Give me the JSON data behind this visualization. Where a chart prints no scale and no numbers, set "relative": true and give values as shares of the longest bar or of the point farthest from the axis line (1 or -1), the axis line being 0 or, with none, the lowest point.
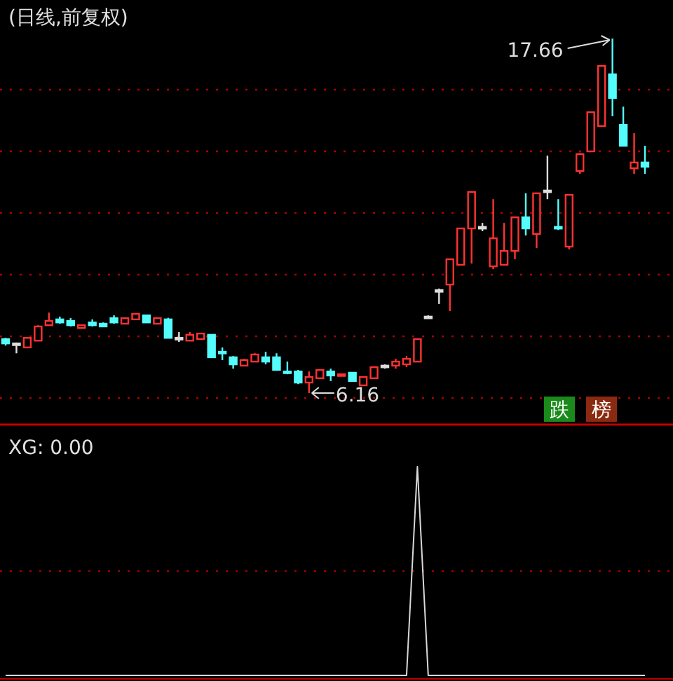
{
  "chart_data": [
    {
      "type": "candlestick",
      "title": "(日线,前复权)",
      "categories": [
        null,
        null,
        null,
        null,
        null,
        null,
        null,
        null,
        null,
        null,
        null,
        null,
        null,
        null,
        null,
        null,
        null,
        null,
        null,
        null,
        null,
        null,
        null,
        null,
        null,
        null,
        null,
        null,
        null,
        null,
        null,
        null,
        null,
        null,
        null,
        null,
        null,
        null,
        null,
        null,
        null,
        null,
        null,
        null,
        null,
        null,
        null,
        null,
        null,
        null,
        null,
        null,
        null,
        null,
        null,
        null,
        null,
        null,
        null,
        null
      ],
      "ohlc": [
        [
          7.91,
          7.95,
          7.7,
          7.77
        ],
        [
          7.77,
          7.8,
          7.45,
          7.77
        ],
        [
          7.64,
          7.98,
          7.62,
          7.95
        ],
        [
          7.86,
          8.36,
          7.84,
          8.32
        ],
        [
          8.36,
          8.77,
          8.36,
          8.5
        ],
        [
          8.55,
          8.64,
          8.41,
          8.45
        ],
        [
          8.5,
          8.59,
          8.32,
          8.36
        ],
        [
          8.27,
          8.36,
          8.27,
          8.36
        ],
        [
          8.45,
          8.55,
          8.32,
          8.36
        ],
        [
          8.41,
          8.45,
          8.32,
          8.32
        ],
        [
          8.59,
          8.68,
          8.41,
          8.45
        ],
        [
          8.41,
          8.59,
          8.41,
          8.59
        ],
        [
          8.55,
          8.73,
          8.55,
          8.73
        ],
        [
          8.68,
          8.68,
          8.45,
          8.45
        ],
        [
          8.41,
          8.59,
          8.41,
          8.59
        ],
        [
          8.55,
          8.6,
          7.95,
          7.95
        ],
        [
          7.95,
          8.14,
          7.82,
          7.95
        ],
        [
          7.86,
          8.14,
          7.86,
          8.05
        ],
        [
          7.91,
          8.09,
          7.91,
          8.09
        ],
        [
          8.05,
          8.05,
          7.32,
          7.32
        ],
        [
          7.5,
          7.64,
          7.23,
          7.45
        ],
        [
          7.32,
          7.36,
          6.95,
          7.09
        ],
        [
          7.05,
          7.27,
          7.05,
          7.23
        ],
        [
          7.18,
          7.45,
          7.18,
          7.41
        ],
        [
          7.32,
          7.5,
          7.09,
          7.18
        ],
        [
          7.32,
          7.45,
          6.91,
          6.91
        ],
        [
          6.86,
          7.18,
          6.77,
          6.82
        ],
        [
          6.86,
          6.91,
          6.45,
          6.5
        ],
        [
          6.5,
          6.86,
          6.16,
          6.68
        ],
        [
          6.64,
          6.91,
          6.64,
          6.91
        ],
        [
          6.86,
          6.95,
          6.55,
          6.73
        ],
        [
          6.73,
          6.77,
          6.73,
          6.77
        ],
        [
          6.82,
          6.82,
          6.55,
          6.55
        ],
        [
          6.41,
          6.68,
          6.41,
          6.68
        ],
        [
          6.64,
          7.0,
          6.64,
          7.0
        ],
        [
          7.05,
          7.09,
          6.95,
          7.05
        ],
        [
          7.05,
          7.27,
          6.95,
          7.18
        ],
        [
          7.09,
          7.36,
          7.0,
          7.27
        ],
        [
          7.18,
          7.91,
          7.18,
          7.91
        ],
        [
          8.64,
          8.68,
          8.64,
          8.64
        ],
        [
          9.5,
          9.55,
          9.05,
          9.5
        ],
        [
          9.68,
          10.5,
          8.82,
          10.5
        ],
        [
          10.32,
          11.5,
          10.32,
          11.5
        ],
        [
          11.5,
          12.68,
          10.36,
          12.68
        ],
        [
          11.55,
          11.68,
          11.41,
          11.55
        ],
        [
          10.27,
          12.45,
          10.18,
          11.18
        ],
        [
          10.32,
          11.68,
          10.32,
          10.77
        ],
        [
          10.77,
          11.86,
          10.5,
          11.86
        ],
        [
          11.86,
          12.64,
          11.27,
          11.5
        ],
        [
          11.32,
          12.64,
          10.86,
          12.64
        ],
        [
          12.73,
          13.86,
          12.45,
          12.73
        ],
        [
          11.55,
          12.45,
          11.45,
          11.5
        ],
        [
          10.91,
          12.59,
          10.82,
          12.59
        ],
        [
          13.36,
          13.95,
          13.27,
          13.91
        ],
        [
          14.0,
          15.27,
          14.0,
          15.27
        ],
        [
          14.82,
          16.77,
          14.82,
          16.77
        ],
        [
          16.5,
          17.66,
          15.14,
          15.73
        ],
        [
          14.86,
          15.45,
          14.18,
          14.18
        ],
        [
          13.45,
          14.59,
          13.27,
          13.64
        ],
        [
          13.64,
          14.18,
          13.27,
          13.5
        ]
      ],
      "colors": [
        "#54fcfc",
        "#dddddd",
        "#ff3232",
        "#ff3232",
        "#ff3232",
        "#54fcfc",
        "#54fcfc",
        "#ff3232",
        "#54fcfc",
        "#54fcfc",
        "#54fcfc",
        "#ff3232",
        "#ff3232",
        "#54fcfc",
        "#ff3232",
        "#54fcfc",
        "#dddddd",
        "#ff3232",
        "#ff3232",
        "#54fcfc",
        "#54fcfc",
        "#54fcfc",
        "#ff3232",
        "#ff3232",
        "#54fcfc",
        "#54fcfc",
        "#54fcfc",
        "#54fcfc",
        "#ff3232",
        "#ff3232",
        "#54fcfc",
        "#ff3232",
        "#54fcfc",
        "#ff3232",
        "#ff3232",
        "#dddddd",
        "#ff3232",
        "#ff3232",
        "#ff3232",
        "#dddddd",
        "#dddddd",
        "#ff3232",
        "#ff3232",
        "#ff3232",
        "#dddddd",
        "#ff3232",
        "#ff3232",
        "#ff3232",
        "#54fcfc",
        "#ff3232",
        "#dddddd",
        "#54fcfc",
        "#ff3232",
        "#ff3232",
        "#ff3232",
        "#ff3232",
        "#54fcfc",
        "#54fcfc",
        "#ff3232",
        "#54fcfc"
      ],
      "yticks": [
        {
          "value": 6,
          "label": null
        },
        {
          "value": 8,
          "label": null
        },
        {
          "value": 10,
          "label": null
        },
        {
          "value": 12,
          "label": null
        },
        {
          "value": 14,
          "label": null
        },
        {
          "value": 16,
          "label": null
        }
      ],
      "grid": "y",
      "annotations": [
        "17.66",
        "6.16",
        "跌",
        "榜"
      ]
    },
    {
      "type": "line",
      "title": "XG: 0.00",
      "relative": true,
      "categories": [
        null,
        null,
        null,
        null,
        null,
        null,
        null,
        null,
        null,
        null,
        null,
        null,
        null,
        null,
        null,
        null,
        null,
        null,
        null,
        null,
        null,
        null,
        null,
        null,
        null,
        null,
        null,
        null,
        null,
        null,
        null,
        null,
        null,
        null,
        null,
        null,
        null,
        null,
        null,
        null,
        null,
        null,
        null,
        null,
        null,
        null,
        null,
        null,
        null,
        null,
        null,
        null,
        null,
        null,
        null,
        null,
        null,
        null,
        null,
        null
      ],
      "series": [
        {
          "color": "#d8d8d8",
          "values": [
            0,
            0,
            0,
            0,
            0,
            0,
            0,
            0,
            0,
            0,
            0,
            0,
            0,
            0,
            0,
            0,
            0,
            0,
            0,
            0,
            0,
            0,
            0,
            0,
            0,
            0,
            0,
            0,
            0,
            0,
            0,
            0,
            0,
            0,
            0,
            0,
            0,
            0,
            1,
            0,
            0,
            0,
            0,
            0,
            0,
            0,
            0,
            0,
            0,
            0,
            0,
            0,
            0,
            0,
            0,
            0,
            0,
            0,
            0,
            0
          ]
        }
      ],
      "ref_lines": [
        {
          "axis": "y",
          "value": 0.5,
          "color": "#a00000",
          "line_style": "dotted"
        }
      ]
    }
  ]
}
